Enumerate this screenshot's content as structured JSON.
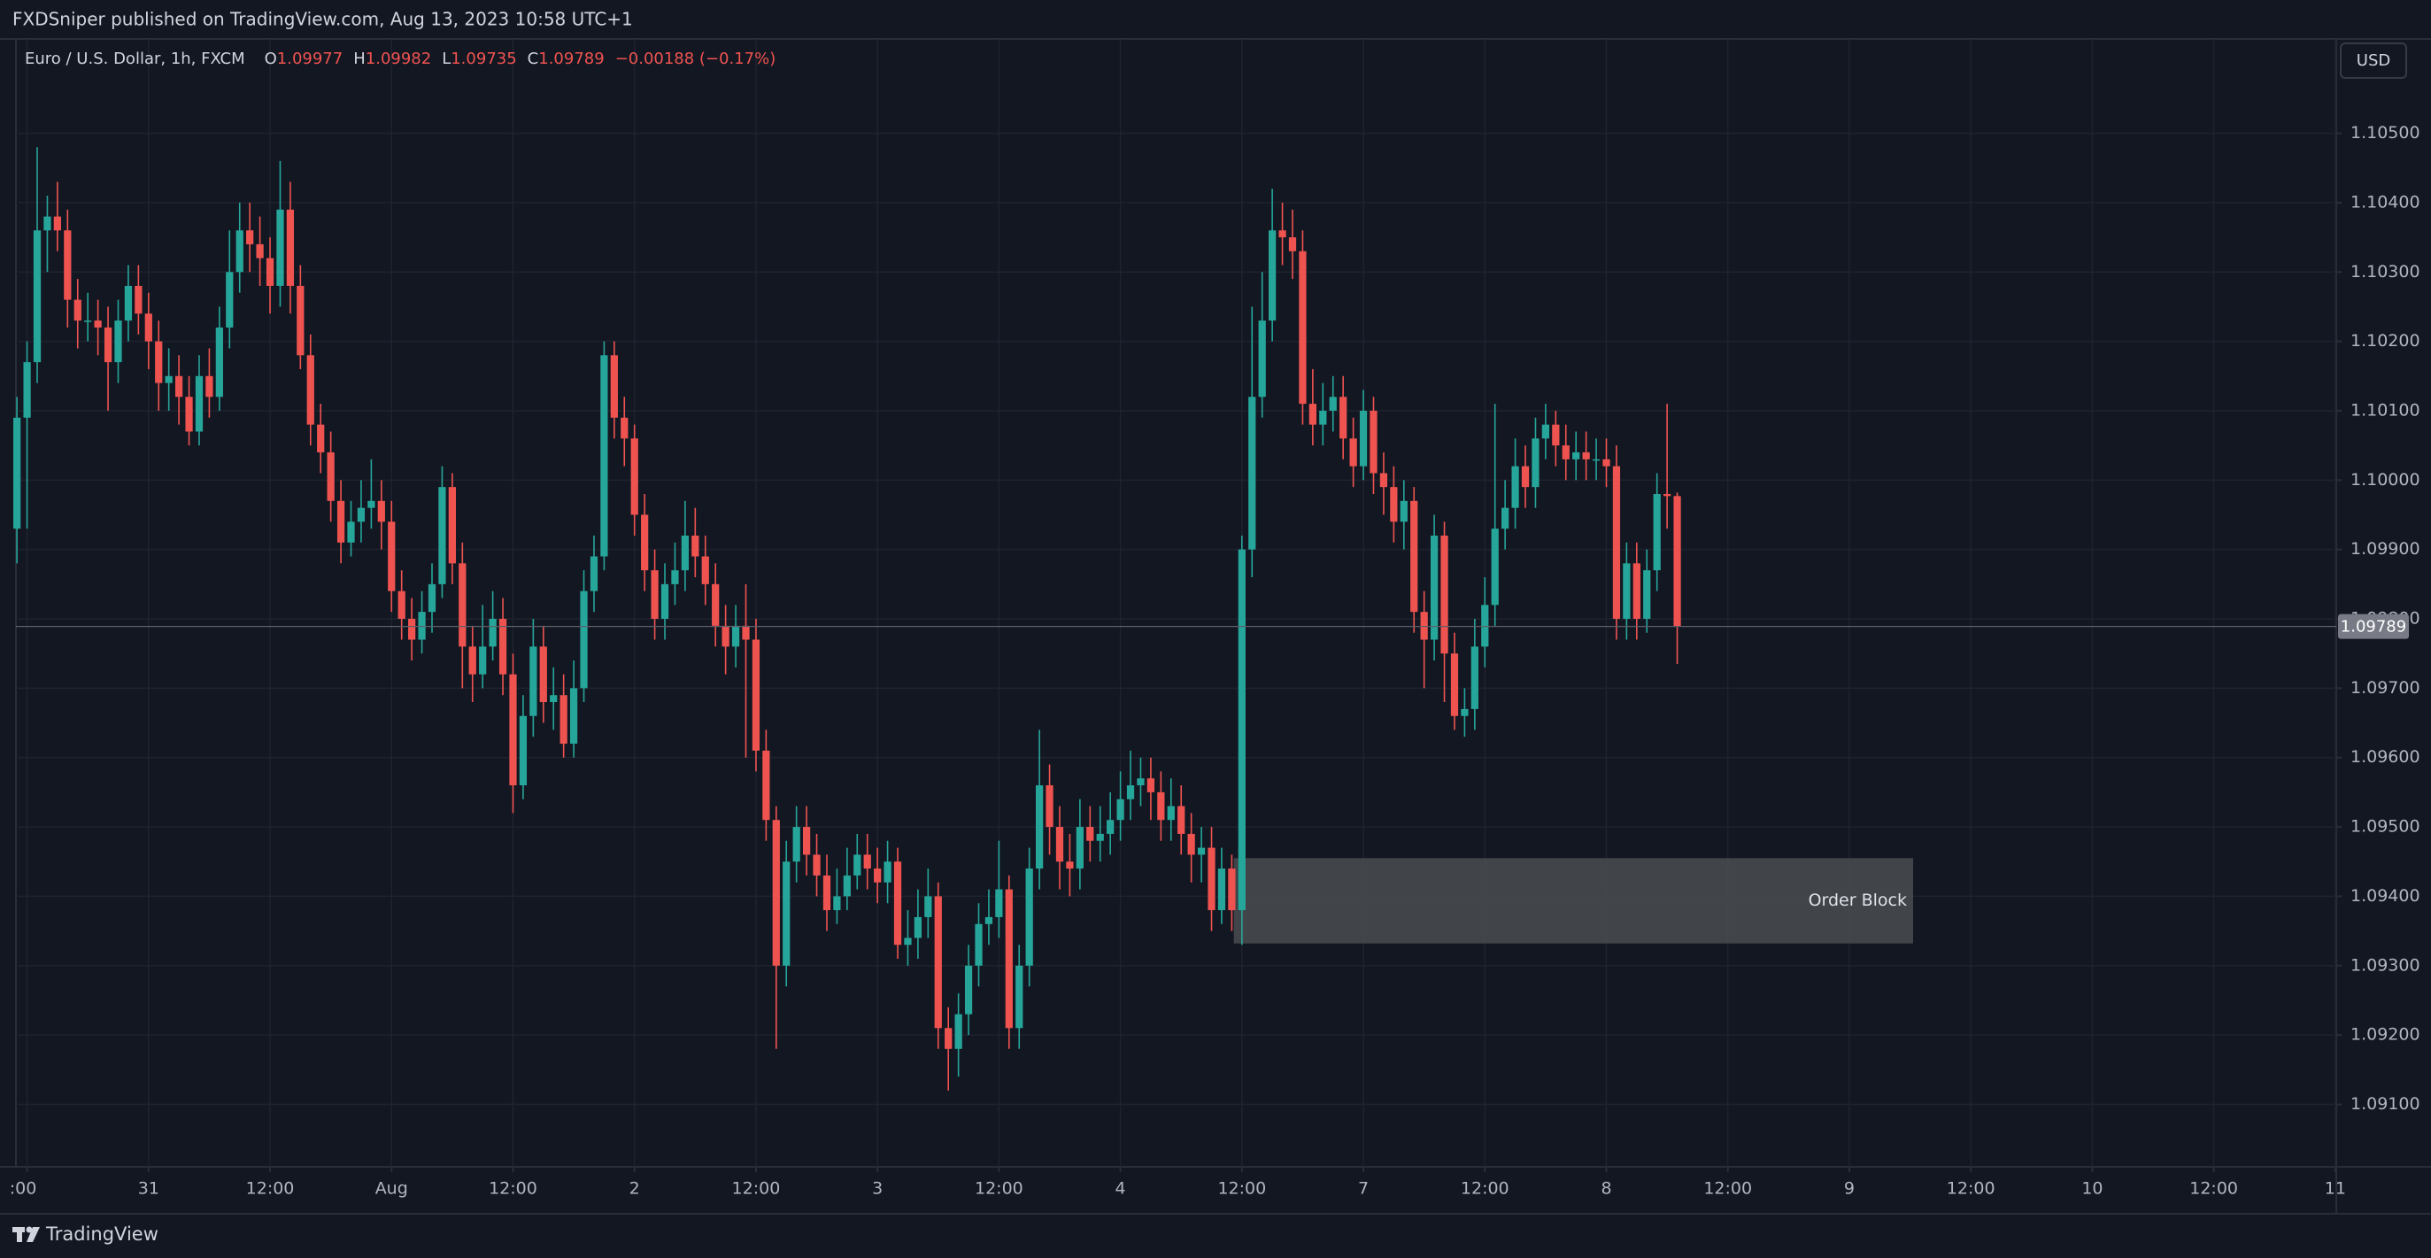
{
  "header": {
    "publisher": "FXDSniper published on TradingView.com, Aug 13, 2023 10:58 UTC+1",
    "brand": "TradingView"
  },
  "chart_data": {
    "type": "candlestick",
    "symbol": "Euro / U.S. Dollar, 1h, FXCM",
    "ohlc_letters": [
      "O",
      "H",
      "L",
      "C"
    ],
    "change": "−0.00188 (−0.17%)",
    "currency": "USD",
    "up_color": "#26a69a",
    "down_color": "#ef5350",
    "open": [
      1.0993,
      1.1009,
      1.1017,
      1.1036,
      1.1038,
      1.1036,
      1.1026,
      1.1023,
      1.1023,
      1.1022,
      1.1017,
      1.1023,
      1.1028,
      1.1024,
      1.102,
      1.1014,
      1.1015,
      1.1012,
      1.1007,
      1.1015,
      1.1012,
      1.1022,
      1.103,
      1.1036,
      1.1034,
      1.1032,
      1.1028,
      1.1039,
      1.1028,
      1.1018,
      1.1008,
      1.1004,
      1.0997,
      1.0991,
      1.0994,
      1.0996,
      1.0997,
      1.0994,
      1.0984,
      1.098,
      1.0977,
      1.0981,
      1.0985,
      1.0999,
      1.0988,
      1.0976,
      1.0972,
      1.0976,
      1.098,
      1.0972,
      1.0956,
      1.0966,
      1.0976,
      1.0968,
      1.0969,
      1.0962,
      1.097,
      1.0984,
      1.0989,
      1.1018,
      1.1009,
      1.1006,
      1.0995,
      1.0987,
      1.098,
      1.0985,
      1.0987,
      1.0992,
      1.0989,
      1.0985,
      1.0979,
      1.0976,
      1.0979,
      1.0977,
      1.0961,
      1.0951,
      1.093,
      1.0945,
      1.095,
      1.0946,
      1.0943,
      1.0938,
      1.094,
      1.0943,
      1.0946,
      1.0944,
      1.0942,
      1.0945,
      1.0933,
      1.0934,
      1.0937,
      1.094,
      1.0921,
      1.0918,
      1.0923,
      1.093,
      1.0936,
      1.0937,
      1.0941,
      1.0921,
      1.093,
      1.0944,
      1.0956,
      1.095,
      1.0945,
      1.0944,
      1.095,
      1.0948,
      1.0949,
      1.0951,
      1.0954,
      1.0956,
      1.0957,
      1.0955,
      1.0951,
      1.0953,
      1.0949,
      1.0946,
      1.0947,
      1.0938,
      1.0944,
      1.0938,
      1.099,
      1.1012,
      1.1023,
      1.1036,
      1.1035,
      1.1033,
      1.1011,
      1.1008,
      1.101,
      1.1012,
      1.1006,
      1.1002,
      1.101,
      1.1001,
      1.0999,
      1.0994,
      1.0997,
      1.0981,
      1.0977,
      1.0992,
      1.0975,
      1.0966,
      1.0967,
      1.0976,
      1.0982,
      1.0993,
      1.0996,
      1.1002,
      1.0999,
      1.1006,
      1.1008,
      1.1005,
      1.1003,
      1.1004,
      1.1003,
      1.1003,
      1.1002,
      1.098,
      1.0988,
      1.098,
      1.0987,
      1.0998,
      1.09977
    ],
    "high": [
      1.1012,
      1.102,
      1.1048,
      1.1041,
      1.1043,
      1.1039,
      1.1029,
      1.1027,
      1.1026,
      1.1025,
      1.1026,
      1.1031,
      1.1031,
      1.1027,
      1.1023,
      1.1019,
      1.1018,
      1.1015,
      1.1018,
      1.1019,
      1.1025,
      1.1036,
      1.104,
      1.104,
      1.1038,
      1.1035,
      1.1046,
      1.1043,
      1.1031,
      1.1021,
      1.1011,
      1.1007,
      1.1,
      1.0997,
      1.1,
      1.1003,
      1.1,
      1.0997,
      1.0987,
      1.0983,
      1.0984,
      1.0988,
      1.1002,
      1.1001,
      1.0991,
      1.0979,
      1.0982,
      1.0984,
      1.0983,
      1.0975,
      1.0969,
      1.098,
      1.0979,
      1.0973,
      1.0972,
      1.0974,
      1.0987,
      1.0992,
      1.102,
      1.102,
      1.1012,
      1.1008,
      1.0998,
      1.099,
      1.0988,
      1.0991,
      1.0997,
      1.0996,
      1.0992,
      1.0988,
      1.0982,
      1.0982,
      1.0985,
      1.098,
      1.0964,
      1.0953,
      1.0948,
      1.0953,
      1.0953,
      1.0949,
      1.0946,
      1.0944,
      1.0947,
      1.0949,
      1.0949,
      1.0947,
      1.0948,
      1.0947,
      1.0938,
      1.0941,
      1.0944,
      1.0942,
      1.0924,
      1.0926,
      1.0933,
      1.0939,
      1.0941,
      1.0948,
      1.0943,
      1.0933,
      1.0947,
      1.0964,
      1.0959,
      1.0953,
      1.0949,
      1.0954,
      1.0953,
      1.0953,
      1.0955,
      1.0958,
      1.0961,
      1.096,
      1.096,
      1.0958,
      1.0957,
      1.0956,
      1.0952,
      1.095,
      1.095,
      1.0947,
      1.0946,
      1.0992,
      1.1025,
      1.103,
      1.1042,
      1.104,
      1.1039,
      1.1036,
      1.1016,
      1.1014,
      1.1015,
      1.1015,
      1.1009,
      1.1013,
      1.1012,
      1.1004,
      1.1002,
      1.1,
      1.0999,
      1.0984,
      1.0995,
      1.0994,
      1.0978,
      1.097,
      1.098,
      1.0986,
      1.1011,
      1.1,
      1.1006,
      1.1005,
      1.1009,
      1.1011,
      1.101,
      1.1008,
      1.1007,
      1.1007,
      1.1006,
      1.1006,
      1.1005,
      1.0991,
      1.0991,
      1.099,
      1.1001,
      1.1011,
      1.09982
    ],
    "low": [
      1.0988,
      1.0993,
      1.1014,
      1.103,
      1.1033,
      1.1022,
      1.1019,
      1.102,
      1.1018,
      1.101,
      1.1014,
      1.102,
      1.1021,
      1.1016,
      1.101,
      1.101,
      1.1008,
      1.1005,
      1.1005,
      1.1009,
      1.101,
      1.1019,
      1.1027,
      1.103,
      1.1028,
      1.1024,
      1.1025,
      1.1024,
      1.1016,
      1.1005,
      1.1001,
      1.0994,
      1.0988,
      1.0989,
      1.0991,
      1.0993,
      1.099,
      1.0981,
      1.0977,
      1.0974,
      1.0975,
      1.0978,
      1.0983,
      1.0985,
      1.097,
      1.0968,
      1.097,
      1.0974,
      1.0969,
      1.0952,
      1.0954,
      1.0963,
      1.0965,
      1.0964,
      1.096,
      1.096,
      1.0968,
      1.0981,
      1.0987,
      1.1006,
      1.1002,
      1.0992,
      1.0984,
      1.0977,
      1.0977,
      1.0982,
      1.0984,
      1.0986,
      1.0982,
      1.0976,
      1.0972,
      1.0973,
      1.096,
      1.0958,
      1.0948,
      1.0918,
      1.0927,
      1.0942,
      1.0943,
      1.094,
      1.0935,
      1.0936,
      1.0938,
      1.0941,
      1.0941,
      1.0939,
      1.0939,
      1.0931,
      1.093,
      1.0931,
      1.0934,
      1.0918,
      1.0912,
      1.0914,
      1.092,
      1.0927,
      1.0933,
      1.0934,
      1.0918,
      1.0918,
      1.0927,
      1.0941,
      1.0946,
      1.0941,
      1.094,
      1.0941,
      1.0945,
      1.0945,
      1.0946,
      1.0948,
      1.0951,
      1.0953,
      1.0951,
      1.0948,
      1.0948,
      1.0946,
      1.0942,
      1.0942,
      1.0935,
      1.0936,
      1.0935,
      1.0933,
      1.0986,
      1.1009,
      1.102,
      1.1031,
      1.1029,
      1.1008,
      1.1005,
      1.1005,
      1.1007,
      1.1003,
      1.0999,
      1.1,
      1.0998,
      1.0995,
      1.0991,
      1.099,
      1.0978,
      1.097,
      1.0974,
      1.0968,
      1.0964,
      1.0963,
      1.0964,
      1.0973,
      1.0979,
      1.099,
      1.0993,
      1.0996,
      1.0996,
      1.1003,
      1.1002,
      1.1,
      1.1,
      1.1,
      1.1,
      1.0999,
      1.0977,
      1.0977,
      1.0977,
      1.0978,
      1.0984,
      1.0993,
      1.09735
    ],
    "close": [
      1.1009,
      1.1017,
      1.1036,
      1.1038,
      1.1036,
      1.1026,
      1.1023,
      1.1023,
      1.1022,
      1.1017,
      1.1023,
      1.1028,
      1.1024,
      1.102,
      1.1014,
      1.1015,
      1.1012,
      1.1007,
      1.1015,
      1.1012,
      1.1022,
      1.103,
      1.1036,
      1.1034,
      1.1032,
      1.1028,
      1.1039,
      1.1028,
      1.1018,
      1.1008,
      1.1004,
      1.0997,
      1.0991,
      1.0994,
      1.0996,
      1.0997,
      1.0994,
      1.0984,
      1.098,
      1.0977,
      1.0981,
      1.0985,
      1.0999,
      1.0988,
      1.0976,
      1.0972,
      1.0976,
      1.098,
      1.0972,
      1.0956,
      1.0966,
      1.0976,
      1.0968,
      1.0969,
      1.0962,
      1.097,
      1.0984,
      1.0989,
      1.1018,
      1.1009,
      1.1006,
      1.0995,
      1.0987,
      1.098,
      1.0985,
      1.0987,
      1.0992,
      1.0989,
      1.0985,
      1.0979,
      1.0976,
      1.0979,
      1.0977,
      1.0961,
      1.0951,
      1.093,
      1.0945,
      1.095,
      1.0946,
      1.0943,
      1.0938,
      1.094,
      1.0943,
      1.0946,
      1.0944,
      1.0942,
      1.0945,
      1.0933,
      1.0934,
      1.0937,
      1.094,
      1.0921,
      1.0918,
      1.0923,
      1.093,
      1.0936,
      1.0937,
      1.0941,
      1.0921,
      1.093,
      1.0944,
      1.0956,
      1.095,
      1.0945,
      1.0944,
      1.095,
      1.0948,
      1.0949,
      1.0951,
      1.0954,
      1.0956,
      1.0957,
      1.0955,
      1.0951,
      1.0953,
      1.0949,
      1.0946,
      1.0947,
      1.0938,
      1.0944,
      1.0938,
      1.099,
      1.1012,
      1.1023,
      1.1036,
      1.1035,
      1.1033,
      1.1011,
      1.1008,
      1.101,
      1.1012,
      1.1006,
      1.1002,
      1.101,
      1.1001,
      1.0999,
      1.0994,
      1.0997,
      1.0981,
      1.0977,
      1.0992,
      1.0975,
      1.0966,
      1.0967,
      1.0976,
      1.0982,
      1.0993,
      1.0996,
      1.1002,
      1.0999,
      1.1006,
      1.1008,
      1.1005,
      1.1003,
      1.1004,
      1.1003,
      1.1003,
      1.1002,
      1.098,
      1.0988,
      1.098,
      1.0987,
      1.0998,
      1.09977,
      1.09789
    ],
    "xlim": [
      -0.1,
      229.1
    ],
    "xticks": [
      {
        "value": 1,
        "label": ":00"
      },
      {
        "value": 13,
        "label": "31"
      },
      {
        "value": 25,
        "label": "12:00"
      },
      {
        "value": 37,
        "label": "Aug"
      },
      {
        "value": 49,
        "label": "12:00"
      },
      {
        "value": 61,
        "label": "2"
      },
      {
        "value": 73,
        "label": "12:00"
      },
      {
        "value": 85,
        "label": "3"
      },
      {
        "value": 97,
        "label": "12:00"
      },
      {
        "value": 109,
        "label": "4"
      },
      {
        "value": 121,
        "label": "12:00"
      },
      {
        "value": 133,
        "label": "7"
      },
      {
        "value": 145,
        "label": "12:00"
      },
      {
        "value": 157,
        "label": "8"
      },
      {
        "value": 169,
        "label": "12:00"
      },
      {
        "value": 181,
        "label": "9"
      },
      {
        "value": 193,
        "label": "12:00"
      },
      {
        "value": 205,
        "label": "10"
      },
      {
        "value": 217,
        "label": "12:00"
      },
      {
        "value": 229,
        "label": "11"
      }
    ],
    "ylim": [
      1.0901,
      1.10636
    ],
    "yticks": [
      {
        "value": 1.091,
        "label": "1.09100"
      },
      {
        "value": 1.092,
        "label": "1.09200"
      },
      {
        "value": 1.093,
        "label": "1.09300"
      },
      {
        "value": 1.094,
        "label": "1.09400"
      },
      {
        "value": 1.095,
        "label": "1.09500"
      },
      {
        "value": 1.096,
        "label": "1.09600"
      },
      {
        "value": 1.097,
        "label": "1.09700"
      },
      {
        "value": 1.098,
        "label": "1.09800"
      },
      {
        "value": 1.099,
        "label": "1.09900"
      },
      {
        "value": 1.1,
        "label": "1.10000"
      },
      {
        "value": 1.101,
        "label": "1.10100"
      },
      {
        "value": 1.102,
        "label": "1.10200"
      },
      {
        "value": 1.103,
        "label": "1.10300"
      },
      {
        "value": 1.104,
        "label": "1.10400"
      },
      {
        "value": 1.105,
        "label": "1.10500"
      }
    ],
    "grid": true,
    "annotations": [
      {
        "text": "Order Block",
        "x": [
          120.2,
          187.3
        ],
        "y": [
          1.09332,
          1.09455
        ],
        "color": "#4a4c4f"
      }
    ]
  }
}
